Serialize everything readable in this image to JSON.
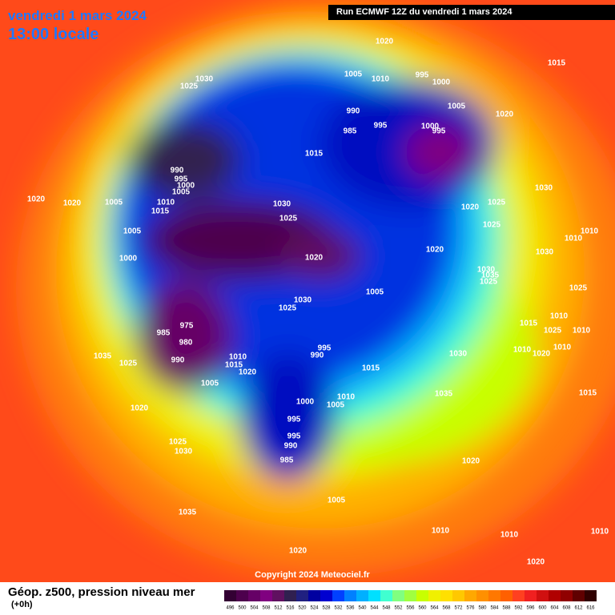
{
  "header": {
    "date": "vendredi 1 mars 2024",
    "time": "13:00 locale",
    "run": "Run ECMWF 12Z du vendredi 1 mars 2024"
  },
  "footer": {
    "copyright": "Copyright 2024 Meteociel.fr",
    "legend_title": "Géop. z500, pression niveau mer",
    "lead": "(+0h)"
  },
  "colorbar": {
    "ticks": [
      496,
      500,
      504,
      508,
      512,
      516,
      520,
      524,
      528,
      532,
      536,
      540,
      544,
      548,
      552,
      556,
      560,
      564,
      568,
      572,
      576,
      580,
      584,
      588,
      592,
      596,
      600,
      604,
      608,
      612,
      616
    ],
    "colors": [
      "#330033",
      "#4d004d",
      "#660066",
      "#800080",
      "#601060",
      "#302050",
      "#202080",
      "#0000a0",
      "#0000d0",
      "#0040ff",
      "#0080ff",
      "#00b0ff",
      "#00e0ff",
      "#40ffd0",
      "#80ff80",
      "#a0ff40",
      "#c8ff00",
      "#f0f000",
      "#ffe000",
      "#ffc800",
      "#ffa800",
      "#ff9000",
      "#ff7800",
      "#ff6000",
      "#ff4020",
      "#f02020",
      "#d01010",
      "#b00000",
      "#900000",
      "#600000",
      "#300000"
    ]
  },
  "isobar_labels": [
    "1020",
    "1015",
    "1030",
    "1025",
    "1005",
    "1010",
    "995",
    "1000",
    "990",
    "995",
    "985",
    "1005",
    "1020",
    "1000",
    "995",
    "990",
    "995",
    "1000",
    "1005",
    "1010",
    "1015",
    "1015",
    "1020",
    "1005",
    "1020",
    "1030",
    "1025",
    "1030",
    "1025",
    "1020",
    "1025",
    "1005",
    "1000",
    "1020",
    "1020",
    "1030",
    "1010",
    "1010",
    "1030",
    "1035",
    "1025",
    "1005",
    "1030",
    "1025",
    "975",
    "985",
    "980",
    "990",
    "995",
    "990",
    "1035",
    "1025",
    "1010",
    "1015",
    "1020",
    "1005",
    "1015",
    "1030",
    "1035",
    "1010",
    "1005",
    "1000",
    "995",
    "995",
    "990",
    "985",
    "1020",
    "1025",
    "1030",
    "1035",
    "1020",
    "1005",
    "1010",
    "1020",
    "1010",
    "1010",
    "1015",
    "1020",
    "1010",
    "1025",
    "1015",
    "1010",
    "1020",
    "1010",
    "1010",
    "1025"
  ]
}
